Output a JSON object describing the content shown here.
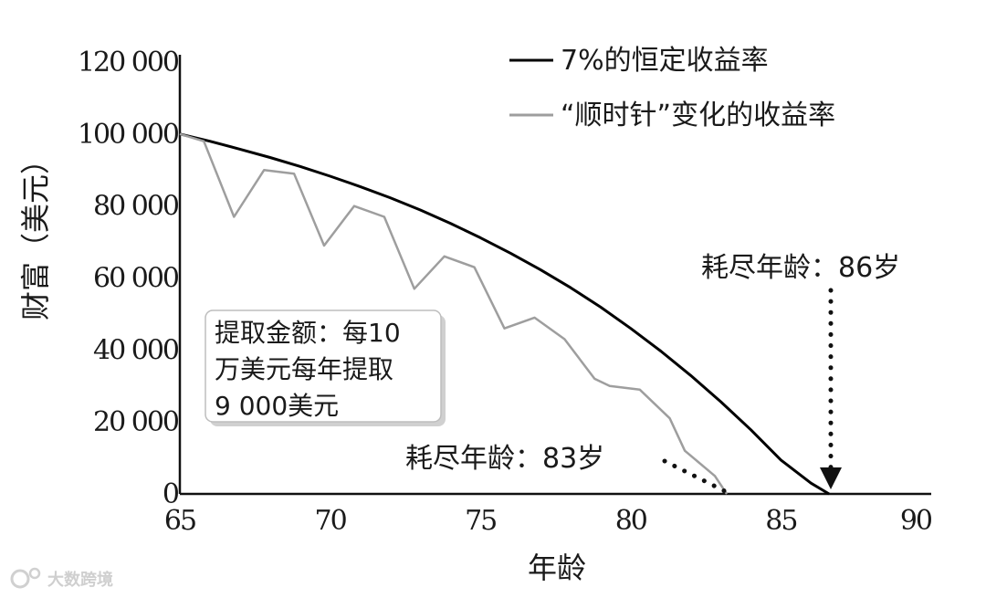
{
  "chart_data": {
    "type": "line",
    "ylabel": "财富（美元）",
    "xlabel": "年龄",
    "xlim": [
      65,
      90
    ],
    "ylim": [
      0,
      120000
    ],
    "x_ticks": [
      65,
      70,
      75,
      80,
      85,
      90
    ],
    "x_tick_labels": [
      "65",
      "70",
      "75",
      "80",
      "85",
      "90"
    ],
    "y_ticks": [
      0,
      20000,
      40000,
      60000,
      80000,
      100000,
      120000
    ],
    "y_tick_labels": [
      "0",
      "20 000",
      "40 000",
      "60 000",
      "80 000",
      "100 000",
      "120 000"
    ],
    "grid": false,
    "legend_position": "top-right",
    "series": [
      {
        "name": "7%的恒定收益率",
        "color": "#000000",
        "x": [
          65,
          66,
          67,
          68,
          69,
          70,
          71,
          72,
          73,
          74,
          75,
          76,
          77,
          78,
          79,
          80,
          81,
          82,
          83,
          84,
          85,
          86,
          86.6
        ],
        "y": [
          100000,
          98000,
          95800,
          93500,
          91000,
          88300,
          85400,
          82300,
          78900,
          75200,
          71200,
          66900,
          62300,
          57300,
          51900,
          46000,
          39700,
          32900,
          25600,
          17800,
          9400,
          3000,
          0
        ]
      },
      {
        "name": "“顺时针”变化的收益率",
        "color": "#9e9e9e",
        "x": [
          65,
          65.8,
          66.8,
          67.8,
          68.8,
          69.8,
          70.8,
          71.8,
          72.8,
          73.8,
          74.8,
          75.8,
          76.8,
          77.8,
          78.8,
          79.3,
          80.3,
          81.3,
          81.8,
          82.8,
          83.2
        ],
        "y": [
          100000,
          98000,
          77000,
          90000,
          89000,
          69000,
          80000,
          77000,
          57000,
          66000,
          63000,
          46000,
          49000,
          43000,
          32000,
          30000,
          29000,
          21000,
          12000,
          5000,
          0
        ]
      }
    ],
    "annotations": [
      {
        "text": "耗尽年龄：86岁",
        "x": 86.6,
        "y": 0
      },
      {
        "text": "耗尽年龄：83岁",
        "x": 83.2,
        "y": 0
      }
    ],
    "note_box": [
      "提取金额：每10",
      "万美元每年提取",
      "9 000美元"
    ]
  },
  "watermark": "大数跨境"
}
